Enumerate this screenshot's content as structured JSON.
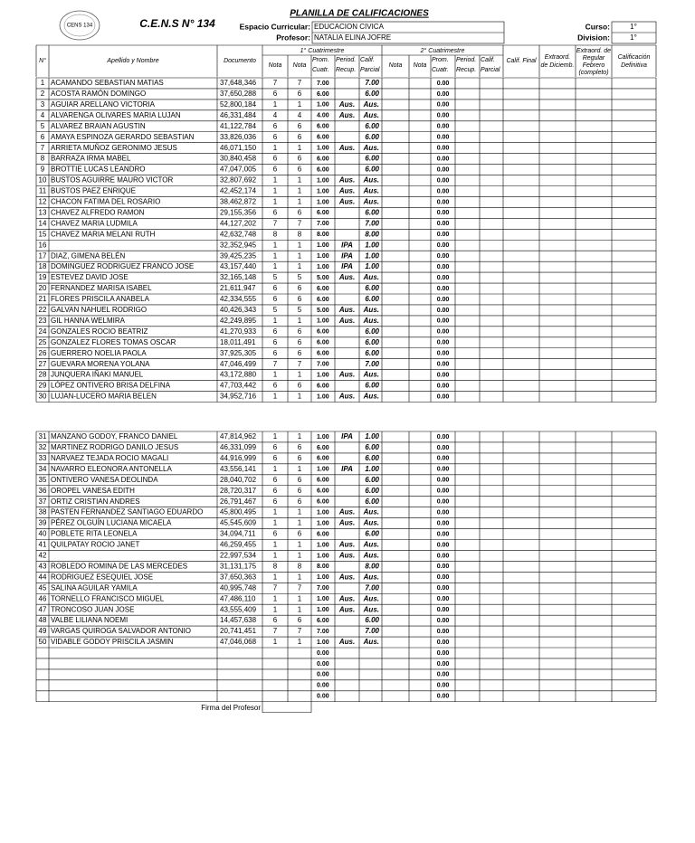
{
  "header": {
    "title": "PLANILLA DE CALIFICACIONES",
    "school": "C.E.N.S N° 134",
    "logo_text": "CENS 134",
    "espacio_label": "Espacio Curricular:",
    "espacio_value": "EDUCACION CIVICA",
    "profesor_label": "Profesor:",
    "profesor_value": "NATALIA ELINA JOFRE",
    "curso_label": "Curso:",
    "curso_value": "1°",
    "division_label": "Division:",
    "division_value": "1°"
  },
  "table": {
    "columns": {
      "num": "N°",
      "name": "Apellido y Nombre",
      "doc": "Documento",
      "cuatr1": "1° Cuatrimestre",
      "cuatr2": "2° Cuatrimestre",
      "nota": "Nota",
      "prom": [
        "Prom.",
        "Cuatr."
      ],
      "recup": [
        "Period.",
        "Recup."
      ],
      "parcial": [
        "Calif.",
        "Parcial"
      ],
      "final": "Calif. Final",
      "extra_dic": [
        "Extraord.",
        "de Diciemb."
      ],
      "extra_feb": [
        "Extraord. de",
        "Regular",
        "Febrero",
        "(completo)"
      ],
      "definitiva": [
        "Calificación",
        "Definitiva"
      ]
    },
    "blocks": [
      {
        "rows": [
          [
            "1",
            "ACAMANDO SEBASTIAN MATIAS",
            "37,648,346",
            "7",
            "7",
            "7.00",
            null,
            "7.00",
            "0.00"
          ],
          [
            "2",
            "ACOSTA RAMÓN DOMINGO",
            "37,650,288",
            "6",
            "6",
            "6.00",
            null,
            "6.00",
            "0.00"
          ],
          [
            "3",
            "AGUIAR ARELLANO VICTORIA",
            "52,800,184",
            "1",
            "1",
            "1.00",
            "Aus.",
            "Aus.",
            "0.00"
          ],
          [
            "4",
            "ALVARENGA OLIVARES MARIA LUJAN",
            "46,331,484",
            "4",
            "4",
            "4.00",
            "Aus.",
            "Aus.",
            "0.00"
          ],
          [
            "5",
            "ALVAREZ BRAIAN AGUSTIN",
            "41,122,784",
            "6",
            "6",
            "6.00",
            null,
            "6.00",
            "0.00"
          ],
          [
            "6",
            "AMAYA ESPINOZA GERARDO SEBASTIAN",
            "33,826,036",
            "6",
            "6",
            "6.00",
            null,
            "6.00",
            "0.00"
          ],
          [
            "7",
            "ARRIETA MUÑOZ GERONIMO JESUS",
            "46,071,150",
            "1",
            "1",
            "1.00",
            "Aus.",
            "Aus.",
            "0.00"
          ],
          [
            "8",
            "BARRAZA IRMA MABEL",
            "30,840,458",
            "6",
            "6",
            "6.00",
            null,
            "6.00",
            "0.00"
          ],
          [
            "9",
            "BROTTIE LUCAS LEANDRO",
            "47,047,005",
            "6",
            "6",
            "6.00",
            null,
            "6.00",
            "0.00"
          ],
          [
            "10",
            "BUSTOS AGUIRRE MAURO VICTOR",
            "32,807,692",
            "1",
            "1",
            "1.00",
            "Aus.",
            "Aus.",
            "0.00"
          ],
          [
            "11",
            "BUSTOS PAEZ ENRIQUE",
            "42,452,174",
            "1",
            "1",
            "1.00",
            "Aus.",
            "Aus.",
            "0.00"
          ],
          [
            "12",
            "CHACON FATIMA DEL ROSARIO",
            "38,462,872",
            "1",
            "1",
            "1.00",
            "Aus.",
            "Aus.",
            "0.00"
          ],
          [
            "13",
            "CHAVEZ ALFREDO RAMON",
            "29,155,356",
            "6",
            "6",
            "6.00",
            null,
            "6.00",
            "0.00"
          ],
          [
            "14",
            "CHAVEZ MARIA LUDMILA",
            "44,127,202",
            "7",
            "7",
            "7.00",
            null,
            "7.00",
            "0.00"
          ],
          [
            "15",
            "CHAVEZ MARIA MELANI RUTH",
            "42,632,748",
            "8",
            "8",
            "8.00",
            null,
            "8.00",
            "0.00"
          ],
          [
            "16",
            null,
            "32,352,945",
            "1",
            "1",
            "1.00",
            "IPA",
            "1.00",
            "0.00"
          ],
          [
            "17",
            "DIAZ, GIMENA BELÉN",
            "39,425,235",
            "1",
            "1",
            "1.00",
            "IPA",
            "1.00",
            "0.00"
          ],
          [
            "18",
            "DOMINGUEZ RODRIGUEZ FRANCO JOSE",
            "43,157,440",
            "1",
            "1",
            "1.00",
            "IPA",
            "1.00",
            "0.00"
          ],
          [
            "19",
            "ESTEVEZ DAVID JOSE",
            "32,165,148",
            "5",
            "5",
            "5.00",
            "Aus.",
            "Aus.",
            "0.00"
          ],
          [
            "20",
            "FERNANDEZ MARISA ISABEL",
            "21,611,947",
            "6",
            "6",
            "6.00",
            null,
            "6.00",
            "0.00"
          ],
          [
            "21",
            "FLORES PRISCILA ANABELA",
            "42,334,555",
            "6",
            "6",
            "6.00",
            null,
            "6.00",
            "0.00"
          ],
          [
            "22",
            "GALVAN NAHUEL RODRIGO",
            "40,426,343",
            "5",
            "5",
            "5.00",
            "Aus.",
            "Aus.",
            "0.00"
          ],
          [
            "23",
            "GIL HANNA WELMIRA",
            "42,249,895",
            "1",
            "1",
            "1.00",
            "Aus.",
            "Aus.",
            "0.00"
          ],
          [
            "24",
            "GONZALES ROCIO BEATRIZ",
            "41,270,933",
            "6",
            "6",
            "6.00",
            null,
            "6.00",
            "0.00"
          ],
          [
            "25",
            "GONZALEZ FLORES TOMAS OSCAR",
            "18,011,491",
            "6",
            "6",
            "6.00",
            null,
            "6.00",
            "0.00"
          ],
          [
            "26",
            "GUERRERO NOELIA PAOLA",
            "37,925,305",
            "6",
            "6",
            "6.00",
            null,
            "6.00",
            "0.00"
          ],
          [
            "27",
            "GUEVARA MORENA YOLANA",
            "47,046,499",
            "7",
            "7",
            "7.00",
            null,
            "7.00",
            "0.00"
          ],
          [
            "28",
            "JUNQUERA IÑAKI MANUEL",
            "43,172,880",
            "1",
            "1",
            "1.00",
            "Aus.",
            "Aus.",
            "0.00"
          ],
          [
            "29",
            "LÓPEZ ONTIVERO BRISA DELFINA",
            "47,703,442",
            "6",
            "6",
            "6.00",
            null,
            "6.00",
            "0.00"
          ],
          [
            "30",
            "LUJAN-LUCERO MARIA BELEN",
            "34,952,716",
            "1",
            "1",
            "1.00",
            "Aus.",
            "Aus.",
            "0.00"
          ]
        ]
      },
      {
        "rows": [
          [
            "31",
            "MANZANO GODOY, FRANCO DANIEL",
            "47,814,962",
            "1",
            "1",
            "1.00",
            "IPA",
            "1.00",
            "0.00"
          ],
          [
            "32",
            "MARTINEZ RODRIGO DANILO JESUS",
            "46,331,099",
            "6",
            "6",
            "6.00",
            null,
            "6.00",
            "0.00"
          ],
          [
            "33",
            "NARVAEZ  TEJADA ROCIO  MAGALI",
            "44,916,999",
            "6",
            "6",
            "6.00",
            null,
            "6.00",
            "0.00"
          ],
          [
            "34",
            "NAVARRO ELEONORA ANTONELLA",
            "43,556,141",
            "1",
            "1",
            "1.00",
            "IPA",
            "1.00",
            "0.00"
          ],
          [
            "35",
            "ONTIVERO VANESA DEOLINDA",
            "28,040,702",
            "6",
            "6",
            "6.00",
            null,
            "6.00",
            "0.00"
          ],
          [
            "36",
            "OROPEL VANESA EDITH",
            "28,720,317",
            "6",
            "6",
            "6.00",
            null,
            "6.00",
            "0.00"
          ],
          [
            "37",
            "ORTIZ CRISTIAN ANDRES",
            "26,791,467",
            "6",
            "6",
            "6.00",
            null,
            "6.00",
            "0.00"
          ],
          [
            "38",
            "PASTEN FERNANDEZ SANTIAGO EDUARDO",
            "45,800,495",
            "1",
            "1",
            "1.00",
            "Aus.",
            "Aus.",
            "0.00"
          ],
          [
            "39",
            "PÉREZ OLGUÍN LUCIANA MICAELA",
            "45,545,609",
            "1",
            "1",
            "1.00",
            "Aus.",
            "Aus.",
            "0.00"
          ],
          [
            "40",
            "POBLETE RITA LEONELA",
            "34,094,711",
            "6",
            "6",
            "6.00",
            null,
            "6.00",
            "0.00"
          ],
          [
            "41",
            "QUILPATAY ROCIO JANET",
            "46,259,455",
            "1",
            "1",
            "1.00",
            "Aus.",
            "Aus.",
            "0.00"
          ],
          [
            "42",
            null,
            "22,997,534",
            "1",
            "1",
            "1.00",
            "Aus.",
            "Aus.",
            "0.00"
          ],
          [
            "43",
            "ROBLEDO ROMINA DE LAS MERCEDES",
            "31,131,175",
            "8",
            "8",
            "8.00",
            null,
            "8.00",
            "0.00"
          ],
          [
            "44",
            "RODRIGUEZ ESEQUIEL JOSE",
            "37,650,363",
            "1",
            "1",
            "1.00",
            "Aus.",
            "Aus.",
            "0.00"
          ],
          [
            "45",
            "SALINA AGUILAR YAMILA",
            "40,995,748",
            "7",
            "7",
            "7.00",
            null,
            "7.00",
            "0.00"
          ],
          [
            "46",
            "TORNELLO FRANCISCO MIGUEL",
            "47,486,110",
            "1",
            "1",
            "1.00",
            "Aus.",
            "Aus.",
            "0.00"
          ],
          [
            "47",
            "TRONCOSO JUAN JOSE",
            "43,555,409",
            "1",
            "1",
            "1.00",
            "Aus.",
            "Aus.",
            "0.00"
          ],
          [
            "48",
            "VALBE LILIANA NOEMI",
            "14,457,638",
            "6",
            "6",
            "6.00",
            null,
            "6.00",
            "0.00"
          ],
          [
            "49",
            "VARGAS QUIROGA SALVADOR ANTONIO",
            "20,741,451",
            "7",
            "7",
            "7.00",
            null,
            "7.00",
            "0.00"
          ],
          [
            "50",
            "VIDABLE GODOY PRISCILA JASMIN",
            "47,046,068",
            "1",
            "1",
            "1.00",
            "Aus.",
            "Aus.",
            "0.00"
          ],
          [
            null,
            null,
            null,
            null,
            null,
            "0.00",
            null,
            null,
            "0.00"
          ],
          [
            null,
            null,
            null,
            null,
            null,
            "0.00",
            null,
            null,
            "0.00"
          ],
          [
            null,
            null,
            null,
            null,
            null,
            "0.00",
            null,
            null,
            "0.00"
          ],
          [
            null,
            null,
            null,
            null,
            null,
            "0.00",
            null,
            null,
            "0.00"
          ],
          [
            null,
            null,
            null,
            null,
            null,
            "0.00",
            null,
            null,
            "0.00"
          ]
        ]
      }
    ]
  },
  "footer": {
    "signature": "Firma del Profesor"
  }
}
